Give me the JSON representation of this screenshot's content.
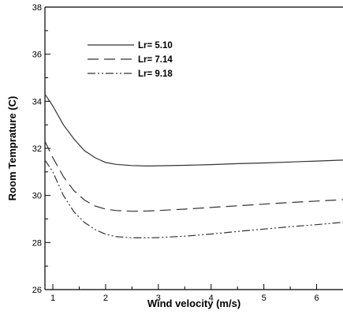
{
  "chart_data": {
    "type": "line",
    "xlabel": "Wind velocity (m/s)",
    "ylabel": "Room Temprature (C)",
    "xlim": [
      0.85,
      6.5
    ],
    "ylim": [
      26,
      38
    ],
    "xticks": [
      1,
      2,
      3,
      4,
      5,
      6
    ],
    "yticks": [
      26,
      28,
      30,
      32,
      34,
      36,
      38
    ],
    "xtick_labels": [
      "1",
      "2",
      "3",
      "4",
      "5",
      "6"
    ],
    "ytick_labels": [
      "26",
      "28",
      "30",
      "32",
      "34",
      "36",
      "38"
    ],
    "grid": false,
    "legend_position": "top-left",
    "series": [
      {
        "name": "Lr= 5.10",
        "style": "solid",
        "x": [
          0.85,
          1.0,
          1.2,
          1.4,
          1.6,
          1.8,
          2.0,
          2.2,
          2.5,
          2.8,
          3.0,
          3.5,
          4.0,
          4.5,
          5.0,
          5.5,
          6.0,
          6.5
        ],
        "y": [
          34.3,
          33.8,
          33.0,
          32.4,
          31.9,
          31.6,
          31.4,
          31.32,
          31.27,
          31.25,
          31.26,
          31.28,
          31.31,
          31.35,
          31.38,
          31.42,
          31.46,
          31.5
        ]
      },
      {
        "name": "Lr= 7.14",
        "style": "dashed",
        "x": [
          0.85,
          1.0,
          1.2,
          1.4,
          1.6,
          1.8,
          2.0,
          2.2,
          2.5,
          2.8,
          3.0,
          3.5,
          4.0,
          4.5,
          5.0,
          5.5,
          6.0,
          6.5
        ],
        "y": [
          32.3,
          31.6,
          30.8,
          30.2,
          29.8,
          29.55,
          29.42,
          29.36,
          29.33,
          29.34,
          29.36,
          29.42,
          29.49,
          29.56,
          29.63,
          29.7,
          29.76,
          29.82
        ]
      },
      {
        "name": "Lr= 9.18",
        "style": "dashdotdot",
        "x": [
          0.85,
          1.0,
          1.2,
          1.4,
          1.6,
          1.8,
          2.0,
          2.2,
          2.5,
          2.8,
          3.0,
          3.5,
          4.0,
          4.5,
          5.0,
          5.5,
          6.0,
          6.5
        ],
        "y": [
          31.5,
          31.0,
          30.0,
          29.3,
          28.85,
          28.55,
          28.35,
          28.25,
          28.2,
          28.2,
          28.21,
          28.27,
          28.36,
          28.47,
          28.57,
          28.67,
          28.76,
          28.86
        ]
      }
    ]
  }
}
